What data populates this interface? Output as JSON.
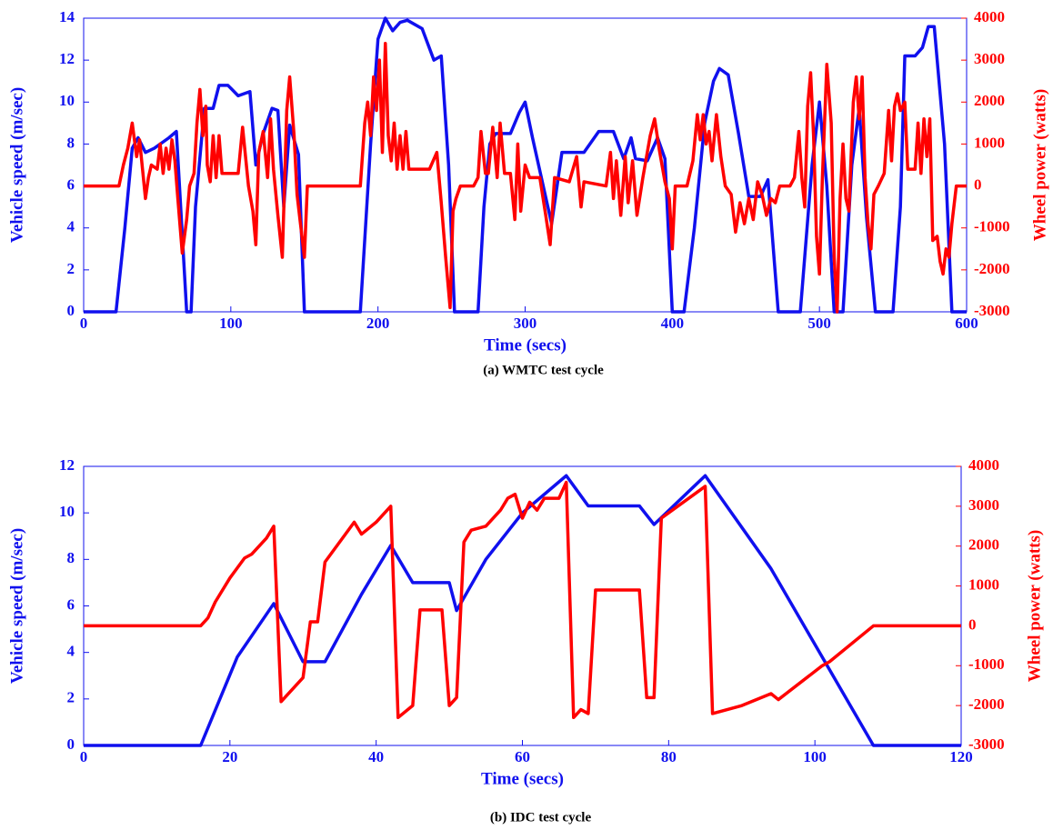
{
  "chart_data": [
    {
      "type": "line",
      "caption": "(a) WMTC test cycle",
      "xlabel": "Time (secs)",
      "ylabel": "Vehicle speed (m/sec)",
      "y2label": "Wheel power (watts)",
      "xlim": [
        0,
        600
      ],
      "xticks": [
        0,
        100,
        200,
        300,
        400,
        500,
        600
      ],
      "ylim": [
        0,
        14
      ],
      "yticks": [
        0,
        2,
        4,
        6,
        8,
        10,
        12,
        14
      ],
      "y2lim": [
        -3000,
        4000
      ],
      "y2ticks": [
        -3000,
        -2000,
        -1000,
        0,
        1000,
        2000,
        3000,
        4000
      ],
      "series": [
        {
          "color": "#1010ee",
          "axis": "y",
          "x": [
            0,
            22,
            28,
            33,
            37,
            42,
            48,
            58,
            63,
            70,
            73,
            76,
            82,
            88,
            92,
            98,
            105,
            113,
            117,
            122,
            128,
            132,
            136,
            140,
            146,
            150,
            188,
            195,
            200,
            205,
            210,
            215,
            220,
            230,
            238,
            243,
            248,
            252,
            268,
            272,
            276,
            280,
            290,
            296,
            300,
            305,
            318,
            325,
            340,
            350,
            360,
            367,
            372,
            375,
            383,
            390,
            395,
            400,
            408,
            415,
            422,
            428,
            432,
            438,
            445,
            452,
            460,
            465,
            472,
            487,
            495,
            500,
            505,
            510,
            516,
            522,
            527,
            532,
            538,
            550,
            555,
            558,
            565,
            570,
            574,
            578,
            585,
            590,
            600
          ],
          "values": [
            0,
            0,
            4,
            7.8,
            8.3,
            7.6,
            7.8,
            8.3,
            8.6,
            0,
            0,
            5,
            9.7,
            9.7,
            10.8,
            10.8,
            10.3,
            10.5,
            7,
            8.5,
            9.7,
            9.6,
            5,
            8.9,
            7.5,
            0,
            0,
            8,
            13,
            14,
            13.4,
            13.8,
            13.9,
            13.5,
            12,
            12.2,
            7,
            0,
            0,
            5,
            8,
            8.5,
            8.5,
            9.5,
            10,
            8.3,
            4.2,
            7.6,
            7.6,
            8.6,
            8.6,
            7.3,
            8.3,
            7.3,
            7.2,
            8.3,
            7.3,
            0,
            0,
            4,
            9,
            11,
            11.6,
            11.3,
            8.5,
            5.5,
            5.5,
            6.3,
            0,
            0,
            7,
            10,
            6,
            0,
            0,
            7,
            9.7,
            4.5,
            0,
            0,
            5,
            12.2,
            12.2,
            12.6,
            13.6,
            13.6,
            8,
            0,
            0
          ]
        },
        {
          "color": "#ff0000",
          "axis": "y2",
          "x": [
            0,
            24,
            27,
            30,
            33,
            36,
            38,
            40,
            42,
            44,
            46,
            50,
            52,
            54,
            56,
            58,
            60,
            62,
            64,
            67,
            70,
            72,
            75,
            77,
            79,
            81,
            83,
            84,
            86,
            88,
            90,
            92,
            94,
            105,
            108,
            112,
            115,
            117,
            119,
            122,
            125,
            127,
            129,
            132,
            135,
            138,
            140,
            143,
            145,
            147,
            150,
            152,
            188,
            191,
            193,
            195,
            197,
            199,
            201,
            203,
            205,
            207,
            209,
            211,
            213,
            215,
            217,
            219,
            221,
            235,
            240,
            243,
            246,
            249,
            251,
            253,
            256,
            265,
            268,
            270,
            273,
            275,
            278,
            281,
            283,
            286,
            290,
            293,
            295,
            297,
            300,
            303,
            310,
            314,
            317,
            320,
            330,
            335,
            338,
            340,
            355,
            358,
            360,
            362,
            365,
            368,
            370,
            373,
            376,
            380,
            385,
            388,
            391,
            395,
            398,
            400,
            402,
            410,
            414,
            417,
            419,
            421,
            423,
            425,
            427,
            430,
            433,
            436,
            440,
            443,
            446,
            449,
            452,
            455,
            458,
            461,
            464,
            467,
            470,
            473,
            480,
            483,
            486,
            488,
            490,
            492,
            494,
            496,
            498,
            500,
            502,
            505,
            508,
            510,
            512,
            514,
            516,
            518,
            520,
            523,
            525,
            527,
            529,
            531,
            533,
            535,
            537,
            540,
            544,
            547,
            549,
            551,
            553,
            555,
            558,
            560,
            565,
            567,
            569,
            571,
            573,
            575,
            577,
            580,
            582,
            584,
            586,
            588,
            590,
            593,
            600
          ],
          "values": [
            0,
            0,
            500,
            900,
            1500,
            700,
            1100,
            400,
            -300,
            200,
            500,
            400,
            1000,
            300,
            900,
            400,
            1100,
            600,
            -300,
            -1600,
            -800,
            0,
            300,
            1500,
            2300,
            1200,
            1900,
            500,
            100,
            1200,
            200,
            1200,
            300,
            300,
            1400,
            0,
            -600,
            -1400,
            800,
            1300,
            200,
            1600,
            400,
            -700,
            -1700,
            1800,
            2600,
            1200,
            -200,
            -800,
            -1700,
            0,
            0,
            1500,
            2000,
            1200,
            2600,
            1800,
            3000,
            800,
            3400,
            1200,
            600,
            1500,
            400,
            1200,
            400,
            1300,
            400,
            400,
            800,
            -400,
            -1700,
            -2900,
            -600,
            -300,
            0,
            0,
            200,
            1300,
            300,
            300,
            1400,
            200,
            1500,
            300,
            300,
            -800,
            1000,
            -600,
            500,
            200,
            200,
            -700,
            -1400,
            200,
            100,
            700,
            -500,
            100,
            0,
            800,
            -300,
            600,
            -700,
            700,
            -400,
            600,
            -700,
            200,
            1200,
            1600,
            900,
            100,
            -300,
            -1500,
            0,
            0,
            600,
            1700,
            1100,
            1700,
            1000,
            1300,
            600,
            1700,
            700,
            0,
            -200,
            -1100,
            -400,
            -900,
            -300,
            -800,
            100,
            -200,
            -700,
            -300,
            -400,
            0,
            0,
            200,
            1300,
            200,
            -500,
            1900,
            2700,
            1200,
            -1200,
            -2100,
            200,
            2900,
            1500,
            -1700,
            -3000,
            -300,
            1000,
            -300,
            -600,
            2000,
            2600,
            1600,
            2600,
            200,
            -900,
            -1500,
            -200,
            0,
            300,
            1800,
            600,
            1900,
            2200,
            1800,
            2000,
            400,
            400,
            1500,
            300,
            1600,
            700,
            1600,
            -1300,
            -1200,
            -1800,
            -2100,
            -1500,
            -1700,
            -900,
            0,
            0
          ]
        }
      ]
    },
    {
      "type": "line",
      "caption": "(b) IDC test cycle",
      "xlabel": "Time (secs)",
      "ylabel": "Vehicle speed (m/sec)",
      "y2label": "Wheel power (watts)",
      "xlim": [
        0,
        120
      ],
      "xticks": [
        0,
        20,
        40,
        60,
        80,
        100,
        120
      ],
      "ylim": [
        0,
        12
      ],
      "yticks": [
        0,
        2,
        4,
        6,
        8,
        10,
        12
      ],
      "y2lim": [
        -3000,
        4000
      ],
      "y2ticks": [
        -3000,
        -2000,
        -1000,
        0,
        1000,
        2000,
        3000,
        4000
      ],
      "series": [
        {
          "color": "#1010ee",
          "axis": "y",
          "x": [
            0,
            16,
            21,
            26,
            30,
            33,
            38,
            42,
            45,
            50,
            51,
            55,
            60,
            66,
            69,
            76,
            78,
            85,
            94,
            101,
            108,
            120
          ],
          "values": [
            0,
            0,
            3.8,
            6.1,
            3.6,
            3.6,
            6.5,
            8.6,
            7,
            7,
            5.8,
            8,
            10,
            11.6,
            10.3,
            10.3,
            9.5,
            11.6,
            7.6,
            3.8,
            0,
            0
          ]
        },
        {
          "color": "#ff0000",
          "axis": "y2",
          "x": [
            0,
            16,
            17,
            18,
            20,
            22,
            23,
            25,
            26,
            27,
            30,
            31,
            32,
            33,
            37,
            38,
            40,
            42,
            43,
            45,
            46,
            49,
            50,
            51,
            52,
            53,
            55,
            57,
            58,
            59,
            60,
            61,
            62,
            63,
            65,
            66,
            67,
            68,
            69,
            70,
            76,
            77,
            78,
            79,
            85,
            86,
            90,
            94,
            95,
            101,
            102,
            108,
            120
          ],
          "values": [
            0,
            0,
            200,
            600,
            1200,
            1700,
            1800,
            2200,
            2500,
            -1900,
            -1300,
            100,
            100,
            1600,
            2600,
            2300,
            2600,
            3000,
            -2300,
            -2000,
            400,
            400,
            -2000,
            -1800,
            2100,
            2400,
            2500,
            2900,
            3200,
            3300,
            2700,
            3100,
            2900,
            3200,
            3200,
            3600,
            -2300,
            -2100,
            -2200,
            900,
            900,
            -1800,
            -1800,
            2700,
            3500,
            -2200,
            -2000,
            -1700,
            -1850,
            -1000,
            -900,
            0,
            0
          ]
        }
      ]
    }
  ]
}
